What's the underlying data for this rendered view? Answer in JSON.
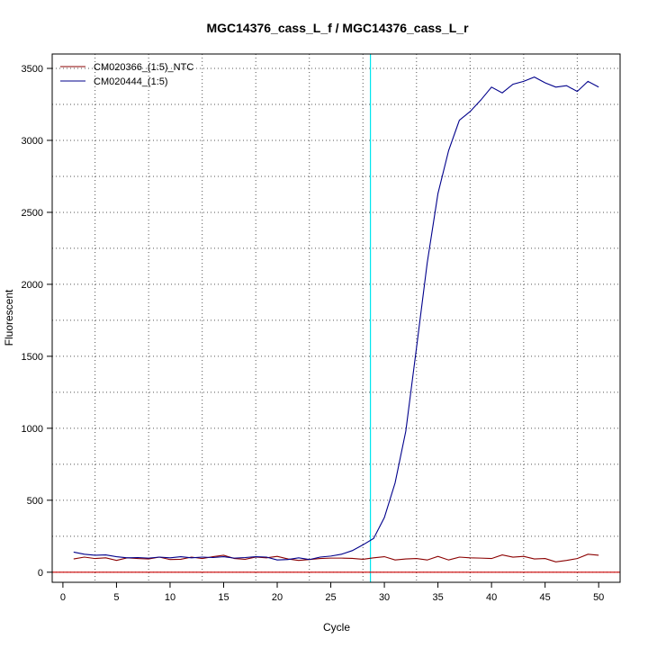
{
  "chart_data": {
    "type": "line",
    "title": "MGC14376_cass_L_f / MGC14376_cass_L_r",
    "xlabel": "Cycle",
    "ylabel": "Fluorescent",
    "xlim": [
      -1,
      52
    ],
    "ylim": [
      -70,
      3600
    ],
    "x_ticks": [
      0,
      5,
      10,
      15,
      20,
      25,
      30,
      35,
      40,
      45,
      50
    ],
    "y_ticks": [
      0,
      500,
      1000,
      1500,
      2000,
      2500,
      3000,
      3500
    ],
    "grid": "dotted",
    "legend_position": "top-left",
    "threshold_cycle": 28.7,
    "threshold_color": "#00e5ee",
    "baseline_value": 0,
    "baseline_color": "#cc0000",
    "x": [
      1,
      2,
      3,
      4,
      5,
      6,
      7,
      8,
      9,
      10,
      11,
      12,
      13,
      14,
      15,
      16,
      17,
      18,
      19,
      20,
      21,
      22,
      23,
      24,
      25,
      26,
      27,
      28,
      29,
      30,
      31,
      32,
      33,
      34,
      35,
      36,
      37,
      38,
      39,
      40,
      41,
      42,
      43,
      44,
      45,
      46,
      47,
      48,
      49,
      50
    ],
    "series": [
      {
        "name": "CM020366_(1:5)_NTC",
        "color": "#8b0000",
        "values": [
          92,
          105,
          95,
          100,
          82,
          100,
          95,
          92,
          105,
          88,
          90,
          105,
          95,
          108,
          118,
          95,
          90,
          105,
          100,
          110,
          92,
          82,
          88,
          95,
          98,
          98,
          96,
          90,
          100,
          108,
          85,
          92,
          95,
          85,
          110,
          85,
          105,
          100,
          98,
          95,
          120,
          105,
          110,
          92,
          95,
          72,
          82,
          95,
          125,
          118
        ]
      },
      {
        "name": "CM020444_(1:5)",
        "color": "#00008b",
        "values": [
          140,
          125,
          118,
          120,
          108,
          100,
          102,
          98,
          105,
          100,
          108,
          100,
          105,
          102,
          108,
          98,
          102,
          108,
          105,
          85,
          88,
          100,
          88,
          105,
          112,
          125,
          150,
          190,
          235,
          380,
          620,
          980,
          1560,
          2150,
          2630,
          2930,
          3140,
          3200,
          3280,
          3370,
          3330,
          3390,
          3410,
          3440,
          3400,
          3370,
          3380,
          3340,
          3410,
          3370
        ]
      }
    ]
  }
}
